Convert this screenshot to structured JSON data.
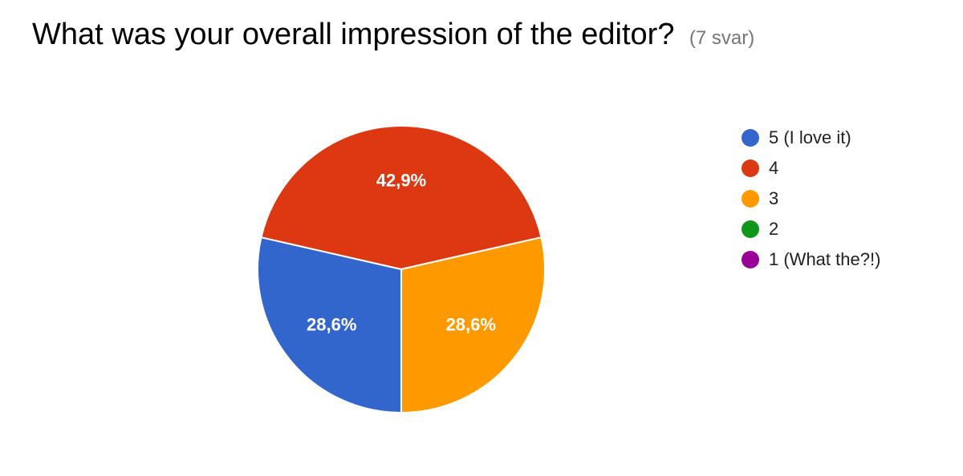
{
  "header": {
    "title": "What was your overall impression of the editor?",
    "response_count": "(7 svar)"
  },
  "chart_data": {
    "type": "pie",
    "title": "What was your overall impression of the editor?",
    "start_angle_deg": 90,
    "direction": "clockwise",
    "legend_position": "right",
    "slices": [
      {
        "label": "5 (I love it)",
        "value": 2,
        "percent_label": "28,6%",
        "color": "#3366cc"
      },
      {
        "label": "4",
        "value": 3,
        "percent_label": "42,9%",
        "color": "#dc3912"
      },
      {
        "label": "3",
        "value": 2,
        "percent_label": "28,6%",
        "color": "#ff9900"
      },
      {
        "label": "2",
        "value": 0,
        "percent_label": "",
        "color": "#109618"
      },
      {
        "label": "1 (What the?!)",
        "value": 0,
        "percent_label": "",
        "color": "#990099"
      }
    ]
  }
}
